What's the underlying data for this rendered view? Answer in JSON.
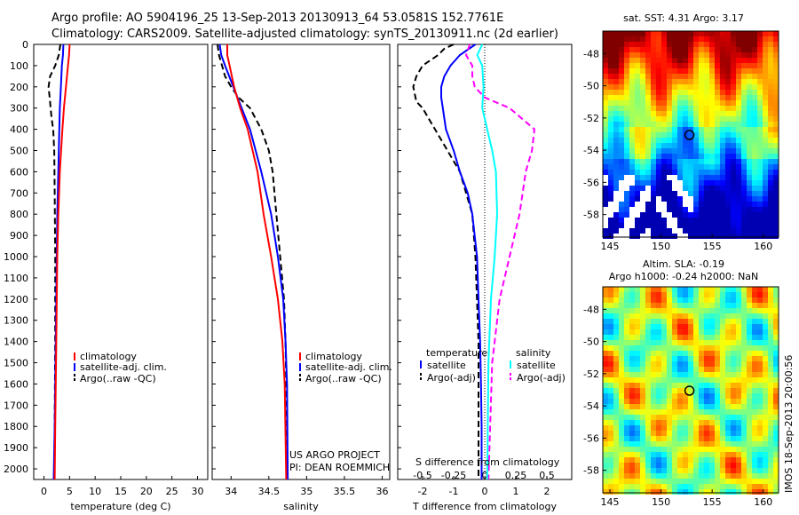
{
  "title": {
    "line1": "Argo profile: AO 5904196_25 13-Sep-2013 20130913_64 53.0581S 152.7761E",
    "line2": "Climatology: CARS2009. Satellite-adjusted climatology: synTS_20130911.nc (2d earlier)"
  },
  "colors": {
    "red": "#ff0000",
    "blue": "#0000ff",
    "black": "#000000",
    "cyan": "#00ffff",
    "magenta": "#ff00ff",
    "purple": "#8000c0"
  },
  "depth_ticks": [
    0,
    100,
    200,
    300,
    400,
    500,
    600,
    700,
    800,
    900,
    1000,
    1100,
    1200,
    1300,
    1400,
    1500,
    1600,
    1700,
    1800,
    1900,
    2000
  ],
  "temp_panel": {
    "xlabel": "temperature (deg C)",
    "xticks": [
      0,
      5,
      10,
      15,
      20,
      25,
      30
    ],
    "xlim": [
      -2,
      32
    ],
    "legend": [
      "climatology",
      "satellite-adj. clim.",
      "Argo(..raw -QC)"
    ]
  },
  "sal_panel": {
    "xlabel": "salinity",
    "xticks": [
      "34",
      "34.5",
      "35",
      "35.5",
      "36"
    ],
    "xtick_values": [
      34,
      34.5,
      35,
      35.5,
      36
    ],
    "xlim": [
      33.75,
      36.1
    ],
    "legend": [
      "climatology",
      "satellite-adj. clim.",
      "Argo(..raw -QC)"
    ],
    "credit1": "US ARGO PROJECT",
    "credit2": "PI: DEAN ROEMMICH"
  },
  "diff_panel": {
    "xlabel": "T difference from climatology",
    "s_label": "S difference from climatology",
    "xticks": [
      "-2",
      "-1",
      "0",
      "1",
      "2"
    ],
    "xtick_values": [
      -2,
      -1,
      0,
      1,
      2
    ],
    "sticks": [
      "-0.5",
      "-0.25",
      "0",
      "0.25",
      "0.5"
    ],
    "stick_values": [
      -0.5,
      -0.25,
      0,
      0.25,
      0.5
    ],
    "xlim": [
      -2.8,
      2.8
    ],
    "legend_t_head": "temperature",
    "legend_s_head": "salinity",
    "legend_t": [
      "satellite",
      "Argo(-adj)"
    ],
    "legend_s": [
      "satellite",
      "Argo(-adj)"
    ]
  },
  "map1": {
    "title": "sat. SST: 4.31  Argo: 3.17",
    "yticks": [
      "-48",
      "-50",
      "-52",
      "-54",
      "-56",
      "-58"
    ],
    "ytick_values": [
      -48,
      -50,
      -52,
      -54,
      -56,
      -58
    ],
    "xticks": [
      "145",
      "150",
      "155",
      "160"
    ],
    "xtick_values": [
      145,
      150,
      155,
      160
    ]
  },
  "map2": {
    "title1": "Altim. SLA: -0.19",
    "title2": "Argo h1000: -0.24  h2000: NaN",
    "yticks": [
      "-48",
      "-50",
      "-52",
      "-54",
      "-56",
      "-58"
    ],
    "ytick_values": [
      -48,
      -50,
      -52,
      -54,
      -56,
      -58
    ],
    "xticks": [
      "145",
      "150",
      "155",
      "160"
    ],
    "xtick_values": [
      145,
      150,
      155,
      160
    ]
  },
  "imos_stamp": "IMOS 18-Sep-2013 20:00:56",
  "float_position": {
    "lon": 152.7761,
    "lat": -53.0581
  },
  "chart_data": [
    {
      "type": "line",
      "title": "",
      "xlabel": "temperature (deg C)",
      "ylabel": "",
      "ylim": [
        2050,
        0
      ],
      "series": [
        {
          "name": "climatology",
          "depth": [
            0,
            50,
            100,
            200,
            300,
            400,
            600,
            800,
            1000,
            1400,
            1800,
            2050
          ],
          "values": [
            5.0,
            4.9,
            4.7,
            4.3,
            3.9,
            3.6,
            3.1,
            2.8,
            2.6,
            2.4,
            2.2,
            2.1
          ]
        },
        {
          "name": "satellite-adj. clim.",
          "depth": [
            0,
            50,
            100,
            200,
            300,
            400,
            600,
            800,
            1000,
            1400,
            1800,
            2050
          ],
          "values": [
            3.8,
            3.7,
            3.5,
            3.3,
            3.1,
            3.0,
            2.8,
            2.6,
            2.5,
            2.3,
            2.1,
            1.9
          ]
        },
        {
          "name": "Argo(..raw -QC)",
          "depth": [
            0,
            50,
            100,
            150,
            200,
            270,
            300,
            350,
            400,
            500,
            700,
            1000,
            1400,
            1800,
            2050
          ],
          "values": [
            3.2,
            2.9,
            2.2,
            1.2,
            0.9,
            1.2,
            1.3,
            1.5,
            1.8,
            2.0,
            2.1,
            2.2,
            2.2,
            2.1,
            2.0
          ]
        }
      ]
    },
    {
      "type": "line",
      "title": "",
      "xlabel": "salinity",
      "ylabel": "",
      "ylim": [
        2050,
        0
      ],
      "series": [
        {
          "name": "climatology",
          "depth": [
            0,
            50,
            100,
            200,
            300,
            400,
            600,
            800,
            1000,
            1200,
            1400,
            1600,
            2050
          ],
          "values": [
            33.95,
            33.95,
            33.98,
            34.04,
            34.12,
            34.22,
            34.35,
            34.43,
            34.53,
            34.62,
            34.68,
            34.71,
            34.73
          ]
        },
        {
          "name": "satellite-adj. clim.",
          "depth": [
            0,
            50,
            100,
            200,
            300,
            400,
            600,
            800,
            1000,
            1200,
            1400,
            1600,
            2050
          ],
          "values": [
            33.85,
            33.87,
            33.92,
            34.03,
            34.14,
            34.25,
            34.4,
            34.53,
            34.62,
            34.69,
            34.72,
            34.74,
            34.75
          ]
        },
        {
          "name": "Argo(..raw -QC)",
          "depth": [
            0,
            50,
            100,
            150,
            200,
            250,
            300,
            400,
            500,
            600,
            800,
            1000,
            1200,
            1400,
            1600,
            2050
          ],
          "values": [
            33.82,
            33.84,
            33.88,
            33.92,
            34.0,
            34.1,
            34.25,
            34.4,
            34.5,
            34.55,
            34.6,
            34.65,
            34.7,
            34.72,
            34.73,
            34.75
          ]
        }
      ]
    },
    {
      "type": "line",
      "title": "",
      "xlabel": "T difference from climatology",
      "ylabel": "",
      "ylim": [
        2050,
        0
      ],
      "series": [
        {
          "name": "satellite",
          "depth": [
            0,
            50,
            100,
            150,
            200,
            250,
            300,
            400,
            500,
            600,
            700,
            800,
            1000,
            1200,
            1400,
            1600,
            1800,
            2050
          ],
          "values": [
            -0.3,
            -0.8,
            -1.1,
            -1.3,
            -1.4,
            -1.4,
            -1.35,
            -1.25,
            -1.0,
            -0.8,
            -0.55,
            -0.4,
            -0.25,
            -0.2,
            -0.15,
            -0.12,
            -0.1,
            -0.1
          ]
        },
        {
          "name": "Argo(-adj)",
          "depth": [
            0,
            20,
            50,
            80,
            100,
            150,
            200,
            270,
            300,
            350,
            400,
            500,
            600,
            700,
            800,
            1000,
            1400,
            1800,
            2050
          ],
          "values": [
            -1.0,
            -1.3,
            -1.5,
            -1.8,
            -2.0,
            -2.2,
            -2.3,
            -2.2,
            -2.0,
            -1.8,
            -1.6,
            -1.2,
            -0.8,
            -0.6,
            -0.4,
            -0.3,
            -0.2,
            -0.2,
            -0.2
          ]
        }
      ]
    },
    {
      "type": "line",
      "title": "",
      "xlabel": "S difference from climatology",
      "ylabel": "",
      "ylim": [
        2050,
        0
      ],
      "series": [
        {
          "name": "satellite",
          "depth": [
            0,
            50,
            100,
            200,
            300,
            400,
            500,
            600,
            800,
            1000,
            1200,
            1500,
            2050
          ],
          "values": [
            -0.02,
            -0.06,
            -0.02,
            -0.01,
            -0.02,
            0.02,
            0.06,
            0.09,
            0.1,
            0.08,
            0.05,
            0.03,
            0.02
          ]
        },
        {
          "name": "Argo(-adj)",
          "depth": [
            0,
            50,
            100,
            150,
            200,
            250,
            300,
            400,
            500,
            600,
            800,
            1000,
            1200,
            1500,
            2050
          ],
          "values": [
            -0.12,
            -0.15,
            -0.1,
            -0.1,
            -0.08,
            0.0,
            0.2,
            0.4,
            0.38,
            0.33,
            0.28,
            0.2,
            0.12,
            0.06,
            0.03
          ]
        }
      ]
    }
  ]
}
